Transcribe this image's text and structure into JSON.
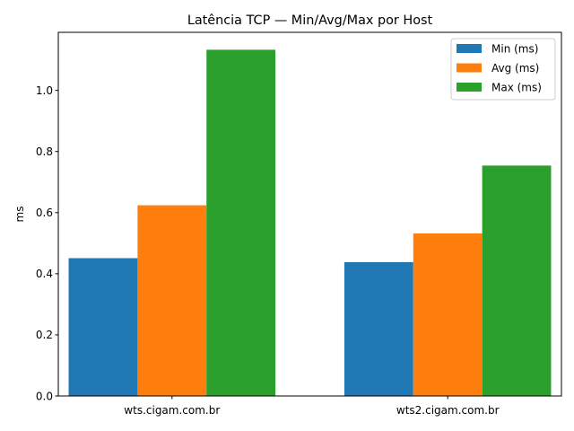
{
  "chart_data": {
    "type": "bar",
    "title": "Latência TCP — Min/Avg/Max por Host",
    "xlabel": "",
    "ylabel": "ms",
    "categories": [
      "wts.cigam.com.br",
      "wts2.cigam.com.br"
    ],
    "series": [
      {
        "name": "Min (ms)",
        "color": "#1f77b4",
        "values": [
          0.451,
          0.438
        ]
      },
      {
        "name": "Avg (ms)",
        "color": "#ff7f0e",
        "values": [
          0.624,
          0.532
        ]
      },
      {
        "name": "Max (ms)",
        "color": "#2ca02c",
        "values": [
          1.133,
          0.754
        ]
      }
    ],
    "ylim": [
      0,
      1.19
    ],
    "yticks": [
      0.0,
      0.2,
      0.4,
      0.6,
      0.8,
      1.0
    ],
    "ytick_labels": [
      "0.0",
      "0.2",
      "0.4",
      "0.6",
      "0.8",
      "1.0"
    ],
    "grid": false,
    "legend_position": "top-right"
  }
}
